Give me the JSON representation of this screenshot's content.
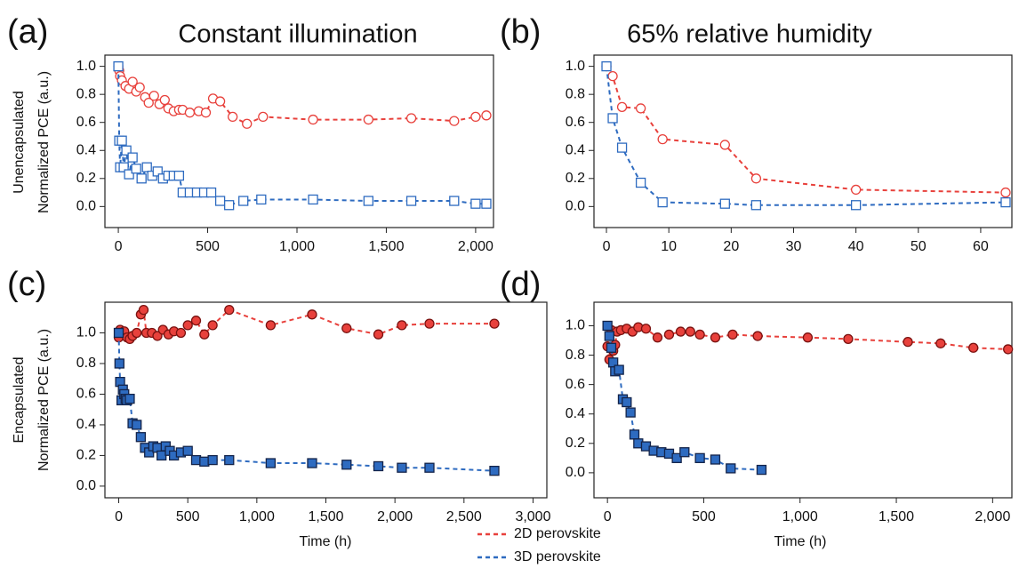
{
  "chart_data": [
    {
      "type": "line",
      "panel_label": "(a)",
      "title": "Constant illumination",
      "row_label": "Unencapsulated",
      "y_label": "Normalized PCE (a.u.)",
      "filled_markers": false,
      "xlim": [
        -75,
        2100
      ],
      "xticks": [
        0,
        500,
        {
          "value": 1000,
          "label": "1,000"
        },
        {
          "value": 1500,
          "label": "1,500"
        },
        {
          "value": 2000,
          "label": "2,000"
        }
      ],
      "ylim": [
        -0.15,
        1.08
      ],
      "yticks": [
        {
          "value": 0,
          "label": "0.0"
        },
        0.2,
        0.4,
        0.6,
        0.8,
        {
          "value": 1,
          "label": "1.0"
        }
      ],
      "series": [
        {
          "name": "2D perovskite",
          "color": "#e8413c",
          "marker": "circle",
          "x": [
            0,
            5,
            10,
            20,
            40,
            60,
            80,
            100,
            120,
            150,
            170,
            200,
            230,
            260,
            280,
            310,
            340,
            360,
            400,
            450,
            490,
            530,
            570,
            640,
            720,
            810,
            1090,
            1400,
            1640,
            1880,
            2000,
            2060
          ],
          "values": [
            1.0,
            0.97,
            0.93,
            0.9,
            0.86,
            0.84,
            0.89,
            0.82,
            0.85,
            0.78,
            0.74,
            0.79,
            0.73,
            0.76,
            0.7,
            0.68,
            0.69,
            0.69,
            0.67,
            0.68,
            0.67,
            0.77,
            0.75,
            0.64,
            0.59,
            0.64,
            0.62,
            0.62,
            0.63,
            0.61,
            0.64,
            0.65
          ]
        },
        {
          "name": "3D perovskite",
          "color": "#2e6bc0",
          "marker": "square",
          "x": [
            0,
            5,
            10,
            20,
            30,
            45,
            60,
            80,
            100,
            130,
            160,
            190,
            220,
            250,
            280,
            310,
            340,
            360,
            400,
            440,
            480,
            520,
            570,
            620,
            700,
            800,
            1090,
            1400,
            1640,
            1880,
            2000,
            2060
          ],
          "values": [
            1.0,
            0.47,
            0.28,
            0.47,
            0.28,
            0.4,
            0.23,
            0.35,
            0.27,
            0.2,
            0.28,
            0.22,
            0.25,
            0.2,
            0.22,
            0.22,
            0.22,
            0.1,
            0.1,
            0.1,
            0.1,
            0.1,
            0.04,
            0.01,
            0.04,
            0.05,
            0.05,
            0.04,
            0.04,
            0.04,
            0.02,
            0.02
          ]
        }
      ]
    },
    {
      "type": "line",
      "panel_label": "(b)",
      "title": "65% relative humidity",
      "filled_markers": false,
      "xlim": [
        -2,
        65
      ],
      "xticks": [
        0,
        10,
        20,
        30,
        40,
        50,
        60
      ],
      "ylim": [
        -0.15,
        1.08
      ],
      "yticks": [
        {
          "value": 0,
          "label": "0.0"
        },
        0.2,
        0.4,
        0.6,
        0.8,
        {
          "value": 1,
          "label": "1.0"
        }
      ],
      "series": [
        {
          "name": "2D perovskite",
          "color": "#e8413c",
          "marker": "circle",
          "x": [
            0,
            1,
            2.5,
            5.5,
            9,
            19,
            24,
            40,
            64
          ],
          "values": [
            1.0,
            0.93,
            0.71,
            0.7,
            0.48,
            0.44,
            0.2,
            0.12,
            0.1
          ]
        },
        {
          "name": "3D perovskite",
          "color": "#2e6bc0",
          "marker": "square",
          "x": [
            0,
            1,
            2.5,
            5.5,
            9,
            19,
            24,
            40,
            64
          ],
          "values": [
            1.0,
            0.63,
            0.42,
            0.17,
            0.03,
            0.02,
            0.01,
            0.01,
            0.03
          ]
        }
      ]
    },
    {
      "type": "line",
      "panel_label": "(c)",
      "row_label": "Encapsulated",
      "y_label": "Normalized PCE (a.u.)",
      "x_label": "Time (h)",
      "filled_markers": true,
      "xlim": [
        -100,
        3100
      ],
      "xticks": [
        0,
        500,
        {
          "value": 1000,
          "label": "1,000"
        },
        {
          "value": 1500,
          "label": "1,500"
        },
        {
          "value": 2000,
          "label": "2,000"
        },
        {
          "value": 2500,
          "label": "2,500"
        },
        {
          "value": 3000,
          "label": "3,000"
        }
      ],
      "ylim": [
        -0.076,
        1.2
      ],
      "yticks": [
        {
          "value": 0,
          "label": "0.0"
        },
        0.2,
        0.4,
        0.6,
        0.8,
        {
          "value": 1,
          "label": "1.0"
        }
      ],
      "series": [
        {
          "name": "2D perovskite",
          "color": "#e8413c",
          "marker": "circle",
          "x": [
            0,
            10,
            20,
            40,
            60,
            80,
            100,
            130,
            160,
            180,
            200,
            240,
            280,
            320,
            360,
            400,
            450,
            500,
            560,
            620,
            680,
            800,
            1100,
            1400,
            1650,
            1880,
            2050,
            2250,
            2720
          ],
          "values": [
            0.97,
            1.02,
            1.0,
            1.01,
            0.97,
            0.96,
            0.98,
            1.0,
            1.12,
            1.15,
            1.0,
            1.0,
            0.98,
            1.02,
            0.99,
            1.01,
            1.0,
            1.05,
            1.08,
            0.99,
            1.05,
            1.15,
            1.05,
            1.12,
            1.03,
            0.99,
            1.05,
            1.06,
            1.06
          ]
        },
        {
          "name": "3D perovskite",
          "color": "#2e6bc0",
          "marker": "square",
          "x": [
            0,
            5,
            10,
            20,
            30,
            40,
            50,
            60,
            80,
            100,
            130,
            160,
            190,
            220,
            250,
            280,
            310,
            340,
            370,
            400,
            450,
            500,
            560,
            620,
            680,
            800,
            1100,
            1400,
            1650,
            1880,
            2050,
            2250,
            2720
          ],
          "values": [
            1.0,
            0.8,
            0.68,
            0.56,
            0.63,
            0.6,
            0.57,
            0.56,
            0.57,
            0.41,
            0.4,
            0.32,
            0.25,
            0.22,
            0.26,
            0.25,
            0.2,
            0.26,
            0.23,
            0.2,
            0.22,
            0.23,
            0.17,
            0.16,
            0.17,
            0.17,
            0.15,
            0.15,
            0.14,
            0.13,
            0.12,
            0.12,
            0.1
          ]
        }
      ]
    },
    {
      "type": "line",
      "panel_label": "(d)",
      "x_label": "Time (h)",
      "filled_markers": true,
      "xlim": [
        -70,
        2100
      ],
      "xticks": [
        0,
        500,
        {
          "value": 1000,
          "label": "1,000"
        },
        {
          "value": 1500,
          "label": "1,500"
        },
        {
          "value": 2000,
          "label": "2,000"
        }
      ],
      "ylim": [
        -0.17,
        1.16
      ],
      "yticks": [
        {
          "value": 0,
          "label": "0.0"
        },
        0.2,
        0.4,
        0.6,
        0.8,
        {
          "value": 1,
          "label": "1.0"
        }
      ],
      "series": [
        {
          "name": "2D perovskite",
          "color": "#e8413c",
          "marker": "circle",
          "x": [
            0,
            10,
            20,
            30,
            40,
            50,
            70,
            100,
            130,
            160,
            200,
            260,
            320,
            380,
            430,
            480,
            560,
            650,
            780,
            1040,
            1250,
            1560,
            1730,
            1900,
            2080
          ],
          "values": [
            0.86,
            0.77,
            0.97,
            0.83,
            0.87,
            0.96,
            0.97,
            0.98,
            0.96,
            0.99,
            0.98,
            0.92,
            0.94,
            0.96,
            0.96,
            0.94,
            0.92,
            0.94,
            0.93,
            0.92,
            0.91,
            0.89,
            0.88,
            0.85,
            0.84
          ]
        },
        {
          "name": "3D perovskite",
          "color": "#2e6bc0",
          "marker": "square",
          "x": [
            0,
            10,
            20,
            30,
            40,
            60,
            80,
            100,
            120,
            140,
            160,
            200,
            240,
            280,
            320,
            360,
            400,
            480,
            560,
            640,
            800
          ],
          "values": [
            1.0,
            0.93,
            0.85,
            0.75,
            0.69,
            0.7,
            0.5,
            0.48,
            0.41,
            0.26,
            0.2,
            0.18,
            0.15,
            0.14,
            0.13,
            0.1,
            0.14,
            0.1,
            0.09,
            0.03,
            0.02
          ]
        }
      ]
    }
  ]
}
